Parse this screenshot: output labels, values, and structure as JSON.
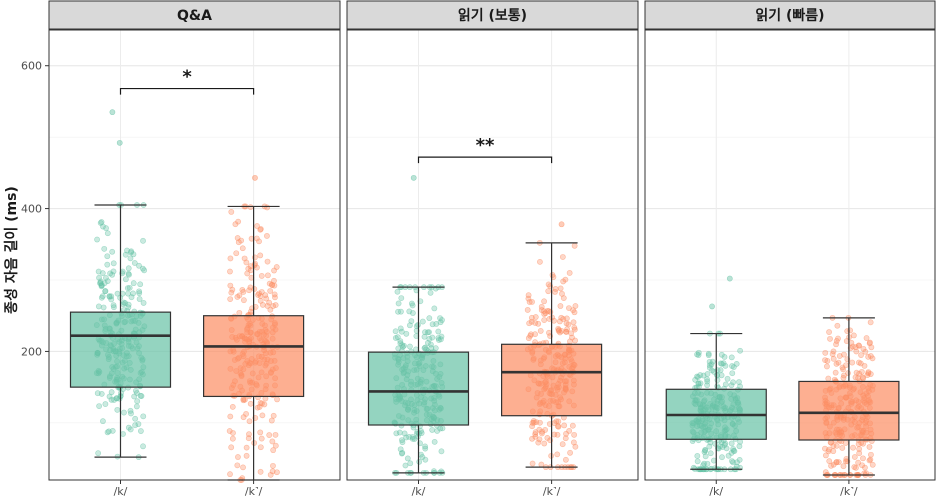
{
  "chart_data": {
    "type": "boxplot",
    "ylabel": "종성 자음 길이 (ms)",
    "xlabel": "",
    "ylim": [
      20,
      650
    ],
    "yticks": [
      200,
      400,
      600
    ],
    "categories": [
      "/k/",
      "/k˺/"
    ],
    "colors": {
      "/k/": "#66c2a5",
      "/k˺/": "#fc8d62"
    },
    "grid": true,
    "legend": "none",
    "panels": [
      {
        "title": "Q&A",
        "boxes": [
          {
            "category": "/k/",
            "whisker_low": 52,
            "q1": 150,
            "median": 222,
            "q3": 255,
            "whisker_high": 405,
            "outliers": [
              492,
              535
            ],
            "n_points": 260
          },
          {
            "category": "/k˺/",
            "whisker_low": 20,
            "q1": 137,
            "median": 207,
            "q3": 250,
            "whisker_high": 403,
            "outliers": [
              443
            ],
            "n_points": 260
          }
        ],
        "significance": {
          "label": "*",
          "y": 568
        }
      },
      {
        "title": "읽기 (보통)",
        "boxes": [
          {
            "category": "/k/",
            "whisker_low": 30,
            "q1": 97,
            "median": 144,
            "q3": 199,
            "whisker_high": 290,
            "outliers": [
              443
            ],
            "n_points": 260
          },
          {
            "category": "/k˺/",
            "whisker_low": 38,
            "q1": 110,
            "median": 171,
            "q3": 210,
            "whisker_high": 352,
            "outliers": [
              378
            ],
            "n_points": 260
          }
        ],
        "significance": {
          "label": "**",
          "y": 472
        }
      },
      {
        "title": "읽기 (빠름)",
        "boxes": [
          {
            "category": "/k/",
            "whisker_low": 35,
            "q1": 77,
            "median": 111,
            "q3": 147,
            "whisker_high": 225,
            "outliers": [
              263,
              302
            ],
            "n_points": 260
          },
          {
            "category": "/k˺/",
            "whisker_low": 27,
            "q1": 76,
            "median": 114,
            "q3": 158,
            "whisker_high": 247,
            "outliers": [],
            "n_points": 260
          }
        ]
      }
    ]
  }
}
